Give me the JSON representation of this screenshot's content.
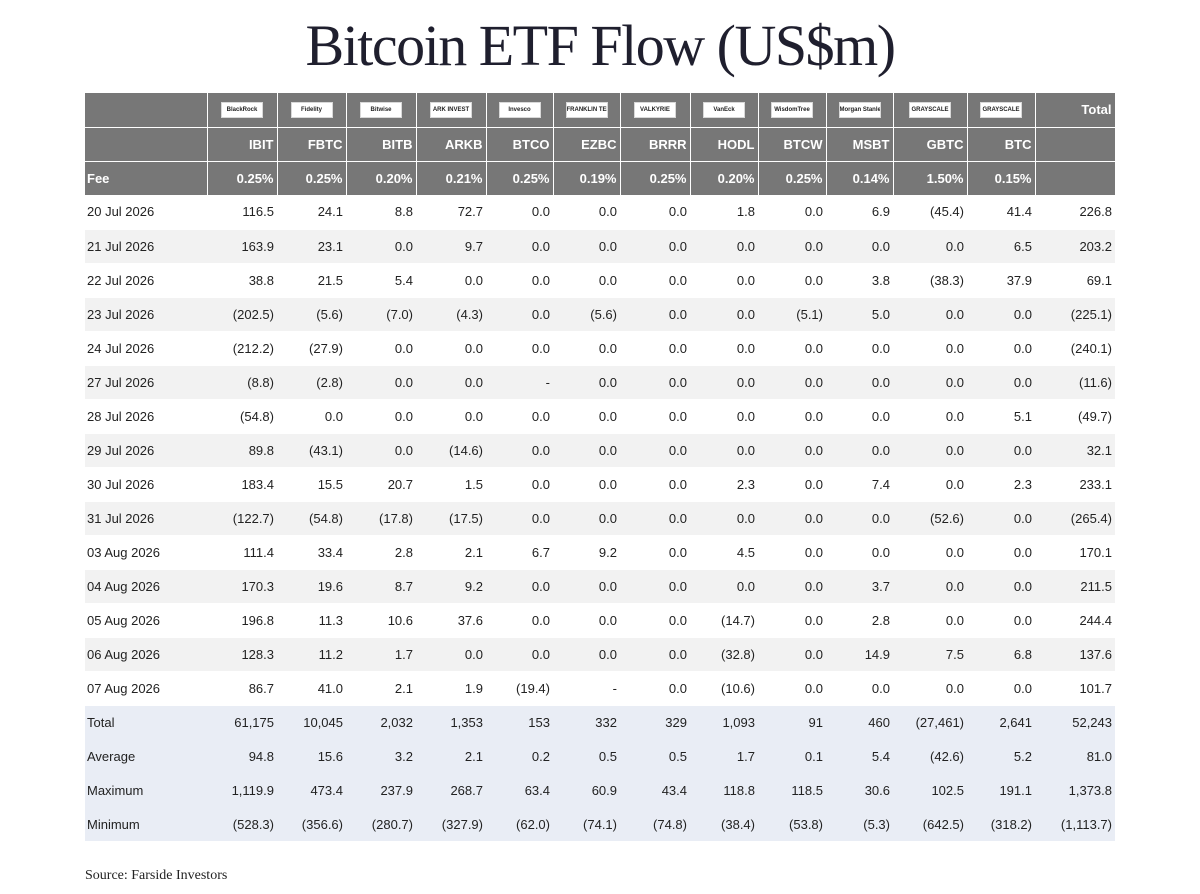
{
  "title": "Bitcoin ETF Flow (US$m)",
  "issuers": [
    "BlackRock",
    "Fidelity",
    "Bitwise",
    "ARK INVEST",
    "Invesco",
    "FRANKLIN TEMPLETON",
    "VALKYRIE",
    "VanEck",
    "WisdomTree",
    "Morgan Stanley",
    "GRAYSCALE",
    "GRAYSCALE"
  ],
  "total_header": "Total",
  "tickers": [
    "IBIT",
    "FBTC",
    "BITB",
    "ARKB",
    "BTCO",
    "EZBC",
    "BRRR",
    "HODL",
    "BTCW",
    "MSBT",
    "GBTC",
    "BTC"
  ],
  "fee_label": "Fee",
  "fees": [
    "0.25%",
    "0.25%",
    "0.20%",
    "0.21%",
    "0.25%",
    "0.19%",
    "0.25%",
    "0.20%",
    "0.25%",
    "0.14%",
    "1.50%",
    "0.15%"
  ],
  "rows": [
    {
      "date": "20 Jul 2026",
      "values": [
        "116.5",
        "24.1",
        "8.8",
        "72.7",
        "0.0",
        "0.0",
        "0.0",
        "1.8",
        "0.0",
        "6.9",
        "(45.4)",
        "41.4"
      ],
      "total": "226.8"
    },
    {
      "date": "21 Jul 2026",
      "values": [
        "163.9",
        "23.1",
        "0.0",
        "9.7",
        "0.0",
        "0.0",
        "0.0",
        "0.0",
        "0.0",
        "0.0",
        "0.0",
        "6.5"
      ],
      "total": "203.2"
    },
    {
      "date": "22 Jul 2026",
      "values": [
        "38.8",
        "21.5",
        "5.4",
        "0.0",
        "0.0",
        "0.0",
        "0.0",
        "0.0",
        "0.0",
        "3.8",
        "(38.3)",
        "37.9"
      ],
      "total": "69.1"
    },
    {
      "date": "23 Jul 2026",
      "values": [
        "(202.5)",
        "(5.6)",
        "(7.0)",
        "(4.3)",
        "0.0",
        "(5.6)",
        "0.0",
        "0.0",
        "(5.1)",
        "5.0",
        "0.0",
        "0.0"
      ],
      "total": "(225.1)"
    },
    {
      "date": "24 Jul 2026",
      "values": [
        "(212.2)",
        "(27.9)",
        "0.0",
        "0.0",
        "0.0",
        "0.0",
        "0.0",
        "0.0",
        "0.0",
        "0.0",
        "0.0",
        "0.0"
      ],
      "total": "(240.1)"
    },
    {
      "date": "27 Jul 2026",
      "values": [
        "(8.8)",
        "(2.8)",
        "0.0",
        "0.0",
        "-",
        "0.0",
        "0.0",
        "0.0",
        "0.0",
        "0.0",
        "0.0",
        "0.0"
      ],
      "total": "(11.6)"
    },
    {
      "date": "28 Jul 2026",
      "values": [
        "(54.8)",
        "0.0",
        "0.0",
        "0.0",
        "0.0",
        "0.0",
        "0.0",
        "0.0",
        "0.0",
        "0.0",
        "0.0",
        "5.1"
      ],
      "total": "(49.7)"
    },
    {
      "date": "29 Jul 2026",
      "values": [
        "89.8",
        "(43.1)",
        "0.0",
        "(14.6)",
        "0.0",
        "0.0",
        "0.0",
        "0.0",
        "0.0",
        "0.0",
        "0.0",
        "0.0"
      ],
      "total": "32.1"
    },
    {
      "date": "30 Jul 2026",
      "values": [
        "183.4",
        "15.5",
        "20.7",
        "1.5",
        "0.0",
        "0.0",
        "0.0",
        "2.3",
        "0.0",
        "7.4",
        "0.0",
        "2.3"
      ],
      "total": "233.1"
    },
    {
      "date": "31 Jul 2026",
      "values": [
        "(122.7)",
        "(54.8)",
        "(17.8)",
        "(17.5)",
        "0.0",
        "0.0",
        "0.0",
        "0.0",
        "0.0",
        "0.0",
        "(52.6)",
        "0.0"
      ],
      "total": "(265.4)"
    },
    {
      "date": "03 Aug 2026",
      "values": [
        "111.4",
        "33.4",
        "2.8",
        "2.1",
        "6.7",
        "9.2",
        "0.0",
        "4.5",
        "0.0",
        "0.0",
        "0.0",
        "0.0"
      ],
      "total": "170.1"
    },
    {
      "date": "04 Aug 2026",
      "values": [
        "170.3",
        "19.6",
        "8.7",
        "9.2",
        "0.0",
        "0.0",
        "0.0",
        "0.0",
        "0.0",
        "3.7",
        "0.0",
        "0.0"
      ],
      "total": "211.5"
    },
    {
      "date": "05 Aug 2026",
      "values": [
        "196.8",
        "11.3",
        "10.6",
        "37.6",
        "0.0",
        "0.0",
        "0.0",
        "(14.7)",
        "0.0",
        "2.8",
        "0.0",
        "0.0"
      ],
      "total": "244.4"
    },
    {
      "date": "06 Aug 2026",
      "values": [
        "128.3",
        "11.2",
        "1.7",
        "0.0",
        "0.0",
        "0.0",
        "0.0",
        "(32.8)",
        "0.0",
        "14.9",
        "7.5",
        "6.8"
      ],
      "total": "137.6"
    },
    {
      "date": "07 Aug 2026",
      "values": [
        "86.7",
        "41.0",
        "2.1",
        "1.9",
        "(19.4)",
        "-",
        "0.0",
        "(10.6)",
        "0.0",
        "0.0",
        "0.0",
        "0.0"
      ],
      "total": "101.7"
    }
  ],
  "summary": [
    {
      "label": "Total",
      "values": [
        "61,175",
        "10,045",
        "2,032",
        "1,353",
        "153",
        "332",
        "329",
        "1,093",
        "91",
        "460",
        "(27,461)",
        "2,641"
      ],
      "total": "52,243"
    },
    {
      "label": "Average",
      "values": [
        "94.8",
        "15.6",
        "3.2",
        "2.1",
        "0.2",
        "0.5",
        "0.5",
        "1.7",
        "0.1",
        "5.4",
        "(42.6)",
        "5.2"
      ],
      "total": "81.0"
    },
    {
      "label": "Maximum",
      "values": [
        "1,119.9",
        "473.4",
        "237.9",
        "268.7",
        "63.4",
        "60.9",
        "43.4",
        "118.8",
        "118.5",
        "30.6",
        "102.5",
        "191.1"
      ],
      "total": "1,373.8"
    },
    {
      "label": "Minimum",
      "values": [
        "(528.3)",
        "(356.6)",
        "(280.7)",
        "(327.9)",
        "(62.0)",
        "(74.1)",
        "(74.8)",
        "(38.4)",
        "(53.8)",
        "(5.3)",
        "(642.5)",
        "(318.2)"
      ],
      "total": "(1,113.7)"
    }
  ],
  "source": "Source: Farside Investors"
}
